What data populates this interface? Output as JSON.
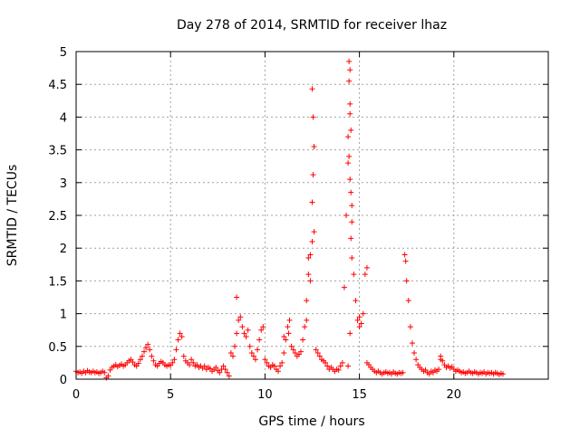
{
  "chart_data": {
    "type": "scatter",
    "title": "Day 278 of 2014, SRMTID for receiver lhaz",
    "xlabel": "GPS time / hours",
    "ylabel": "SRMTID / TECUs",
    "xlim": [
      0,
      25
    ],
    "ylim": [
      0,
      5
    ],
    "xticks": [
      0,
      5,
      10,
      15,
      20
    ],
    "xtick_labels": [
      "0",
      "5",
      "10",
      "15",
      "20"
    ],
    "yticks": [
      0,
      0.5,
      1,
      1.5,
      2,
      2.5,
      3,
      3.5,
      4,
      4.5,
      5
    ],
    "ytick_labels": [
      "0",
      "0.5",
      "1",
      "1.5",
      "2",
      "2.5",
      "3",
      "3.5",
      "4",
      "4.5",
      "5"
    ],
    "grid": true,
    "marker": "+",
    "color": "#ff0000",
    "series": [
      {
        "name": "SRMTID",
        "points": [
          [
            0.0,
            0.12
          ],
          [
            0.1,
            0.1
          ],
          [
            0.2,
            0.11
          ],
          [
            0.3,
            0.09
          ],
          [
            0.4,
            0.12
          ],
          [
            0.5,
            0.1
          ],
          [
            0.6,
            0.13
          ],
          [
            0.7,
            0.11
          ],
          [
            0.8,
            0.1
          ],
          [
            0.9,
            0.12
          ],
          [
            1.0,
            0.1
          ],
          [
            1.1,
            0.11
          ],
          [
            1.2,
            0.09
          ],
          [
            1.3,
            0.1
          ],
          [
            1.4,
            0.12
          ],
          [
            1.5,
            0.1
          ],
          [
            1.6,
            0.02
          ],
          [
            1.7,
            0.05
          ],
          [
            1.8,
            0.14
          ],
          [
            1.9,
            0.18
          ],
          [
            2.0,
            0.2
          ],
          [
            2.1,
            0.22
          ],
          [
            2.2,
            0.19
          ],
          [
            2.3,
            0.21
          ],
          [
            2.4,
            0.23
          ],
          [
            2.5,
            0.2
          ],
          [
            2.6,
            0.22
          ],
          [
            2.7,
            0.25
          ],
          [
            2.8,
            0.28
          ],
          [
            2.9,
            0.3
          ],
          [
            3.0,
            0.26
          ],
          [
            3.1,
            0.22
          ],
          [
            3.2,
            0.2
          ],
          [
            3.3,
            0.24
          ],
          [
            3.4,
            0.3
          ],
          [
            3.5,
            0.35
          ],
          [
            3.6,
            0.42
          ],
          [
            3.7,
            0.48
          ],
          [
            3.8,
            0.53
          ],
          [
            3.9,
            0.45
          ],
          [
            4.0,
            0.35
          ],
          [
            4.1,
            0.28
          ],
          [
            4.2,
            0.22
          ],
          [
            4.3,
            0.2
          ],
          [
            4.4,
            0.24
          ],
          [
            4.5,
            0.27
          ],
          [
            4.6,
            0.25
          ],
          [
            4.7,
            0.22
          ],
          [
            4.8,
            0.2
          ],
          [
            4.9,
            0.22
          ],
          [
            5.0,
            0.21
          ],
          [
            5.1,
            0.25
          ],
          [
            5.2,
            0.3
          ],
          [
            5.3,
            0.45
          ],
          [
            5.4,
            0.6
          ],
          [
            5.5,
            0.7
          ],
          [
            5.6,
            0.65
          ],
          [
            5.7,
            0.35
          ],
          [
            5.8,
            0.28
          ],
          [
            5.9,
            0.25
          ],
          [
            6.0,
            0.22
          ],
          [
            6.1,
            0.3
          ],
          [
            6.2,
            0.25
          ],
          [
            6.3,
            0.2
          ],
          [
            6.4,
            0.22
          ],
          [
            6.5,
            0.18
          ],
          [
            6.6,
            0.2
          ],
          [
            6.7,
            0.17
          ],
          [
            6.8,
            0.2
          ],
          [
            6.9,
            0.15
          ],
          [
            7.0,
            0.18
          ],
          [
            7.1,
            0.16
          ],
          [
            7.2,
            0.12
          ],
          [
            7.3,
            0.15
          ],
          [
            7.4,
            0.18
          ],
          [
            7.5,
            0.13
          ],
          [
            7.6,
            0.1
          ],
          [
            7.7,
            0.15
          ],
          [
            7.8,
            0.2
          ],
          [
            7.9,
            0.15
          ],
          [
            8.0,
            0.1
          ],
          [
            8.1,
            0.05
          ],
          [
            8.2,
            0.4
          ],
          [
            8.3,
            0.35
          ],
          [
            8.4,
            0.5
          ],
          [
            8.5,
            0.7
          ],
          [
            8.6,
            0.9
          ],
          [
            8.7,
            0.95
          ],
          [
            8.8,
            0.8
          ],
          [
            8.9,
            0.7
          ],
          [
            9.0,
            0.65
          ],
          [
            9.1,
            0.75
          ],
          [
            9.2,
            0.5
          ],
          [
            9.3,
            0.4
          ],
          [
            9.4,
            0.35
          ],
          [
            9.5,
            0.3
          ],
          [
            9.6,
            0.45
          ],
          [
            9.7,
            0.6
          ],
          [
            9.8,
            0.75
          ],
          [
            9.9,
            0.8
          ],
          [
            10.0,
            0.3
          ],
          [
            10.1,
            0.25
          ],
          [
            10.2,
            0.2
          ],
          [
            10.3,
            0.18
          ],
          [
            10.4,
            0.22
          ],
          [
            10.5,
            0.2
          ],
          [
            10.6,
            0.15
          ],
          [
            10.7,
            0.12
          ],
          [
            10.8,
            0.2
          ],
          [
            10.9,
            0.25
          ],
          [
            11.0,
            0.4
          ],
          [
            11.1,
            0.6
          ],
          [
            11.2,
            0.8
          ],
          [
            11.3,
            0.9
          ],
          [
            11.4,
            0.5
          ],
          [
            11.5,
            0.45
          ],
          [
            11.6,
            0.4
          ],
          [
            11.7,
            0.35
          ],
          [
            11.8,
            0.38
          ],
          [
            11.9,
            0.42
          ],
          [
            12.0,
            0.6
          ],
          [
            12.1,
            0.8
          ],
          [
            12.2,
            1.2
          ],
          [
            12.3,
            1.6
          ],
          [
            12.4,
            1.9
          ],
          [
            12.5,
            2.1
          ],
          [
            12.6,
            2.25
          ],
          [
            12.7,
            0.45
          ],
          [
            12.8,
            0.4
          ],
          [
            12.9,
            0.35
          ],
          [
            13.0,
            0.3
          ],
          [
            13.1,
            0.28
          ],
          [
            13.2,
            0.25
          ],
          [
            13.3,
            0.2
          ],
          [
            13.4,
            0.15
          ],
          [
            13.5,
            0.18
          ],
          [
            13.6,
            0.15
          ],
          [
            13.7,
            0.12
          ],
          [
            13.8,
            0.15
          ],
          [
            13.9,
            0.14
          ],
          [
            14.0,
            0.2
          ],
          [
            14.1,
            0.25
          ],
          [
            14.2,
            1.4
          ],
          [
            14.3,
            2.5
          ],
          [
            14.4,
            3.3
          ],
          [
            14.5,
            4.2
          ],
          [
            14.6,
            2.4
          ],
          [
            14.7,
            1.6
          ],
          [
            14.8,
            1.2
          ],
          [
            14.9,
            0.9
          ],
          [
            15.0,
            0.8
          ],
          [
            15.1,
            0.85
          ],
          [
            15.2,
            1.0
          ],
          [
            15.3,
            1.6
          ],
          [
            15.4,
            0.25
          ],
          [
            15.5,
            0.22
          ],
          [
            15.6,
            0.18
          ],
          [
            15.7,
            0.15
          ],
          [
            15.8,
            0.12
          ],
          [
            15.9,
            0.1
          ],
          [
            16.0,
            0.12
          ],
          [
            16.1,
            0.1
          ],
          [
            16.2,
            0.08
          ],
          [
            16.3,
            0.1
          ],
          [
            16.4,
            0.11
          ],
          [
            16.5,
            0.09
          ],
          [
            16.6,
            0.1
          ],
          [
            16.7,
            0.08
          ],
          [
            16.8,
            0.11
          ],
          [
            16.9,
            0.09
          ],
          [
            17.0,
            0.08
          ],
          [
            17.1,
            0.1
          ],
          [
            17.2,
            0.09
          ],
          [
            17.3,
            0.1
          ],
          [
            17.4,
            1.9
          ],
          [
            17.5,
            1.5
          ],
          [
            17.6,
            1.2
          ],
          [
            17.7,
            0.8
          ],
          [
            17.8,
            0.55
          ],
          [
            17.9,
            0.4
          ],
          [
            18.0,
            0.3
          ],
          [
            18.1,
            0.22
          ],
          [
            18.2,
            0.18
          ],
          [
            18.3,
            0.15
          ],
          [
            18.4,
            0.12
          ],
          [
            18.5,
            0.14
          ],
          [
            18.6,
            0.1
          ],
          [
            18.7,
            0.08
          ],
          [
            18.8,
            0.12
          ],
          [
            18.9,
            0.1
          ],
          [
            19.0,
            0.14
          ],
          [
            19.1,
            0.12
          ],
          [
            19.2,
            0.15
          ],
          [
            19.3,
            0.35
          ],
          [
            19.4,
            0.28
          ],
          [
            19.5,
            0.22
          ],
          [
            19.6,
            0.18
          ],
          [
            19.7,
            0.2
          ],
          [
            19.8,
            0.17
          ],
          [
            19.9,
            0.19
          ],
          [
            20.0,
            0.15
          ],
          [
            20.1,
            0.12
          ],
          [
            20.2,
            0.14
          ],
          [
            20.3,
            0.12
          ],
          [
            20.4,
            0.1
          ],
          [
            20.5,
            0.11
          ],
          [
            20.6,
            0.09
          ],
          [
            20.7,
            0.1
          ],
          [
            20.8,
            0.12
          ],
          [
            20.9,
            0.1
          ],
          [
            21.0,
            0.09
          ],
          [
            21.1,
            0.11
          ],
          [
            21.2,
            0.1
          ],
          [
            21.3,
            0.08
          ],
          [
            21.4,
            0.1
          ],
          [
            21.5,
            0.09
          ],
          [
            21.6,
            0.11
          ],
          [
            21.7,
            0.08
          ],
          [
            21.8,
            0.1
          ],
          [
            21.9,
            0.09
          ],
          [
            22.0,
            0.1
          ],
          [
            22.1,
            0.08
          ],
          [
            22.2,
            0.1
          ],
          [
            22.3,
            0.09
          ],
          [
            22.4,
            0.07
          ],
          [
            22.5,
            0.09
          ],
          [
            22.6,
            0.08
          ],
          [
            8.5,
            1.25
          ],
          [
            12.5,
            4.43
          ],
          [
            12.55,
            4.0
          ],
          [
            12.6,
            3.55
          ],
          [
            12.55,
            3.12
          ],
          [
            12.5,
            2.7
          ],
          [
            14.45,
            4.85
          ],
          [
            14.5,
            4.72
          ],
          [
            14.45,
            4.55
          ],
          [
            14.5,
            4.05
          ],
          [
            14.55,
            3.8
          ],
          [
            14.4,
            3.7
          ],
          [
            14.45,
            3.4
          ],
          [
            14.5,
            3.05
          ],
          [
            14.55,
            2.85
          ],
          [
            14.6,
            2.65
          ],
          [
            14.55,
            2.15
          ],
          [
            14.6,
            1.85
          ],
          [
            14.5,
            0.7
          ],
          [
            14.4,
            0.2
          ],
          [
            12.3,
            1.85
          ],
          [
            12.4,
            1.5
          ],
          [
            12.2,
            0.9
          ],
          [
            11.25,
            0.7
          ],
          [
            11.0,
            0.65
          ],
          [
            15.4,
            1.7
          ],
          [
            17.45,
            1.8
          ],
          [
            15.0,
            0.95
          ],
          [
            19.3,
            0.3
          ]
        ]
      }
    ]
  }
}
